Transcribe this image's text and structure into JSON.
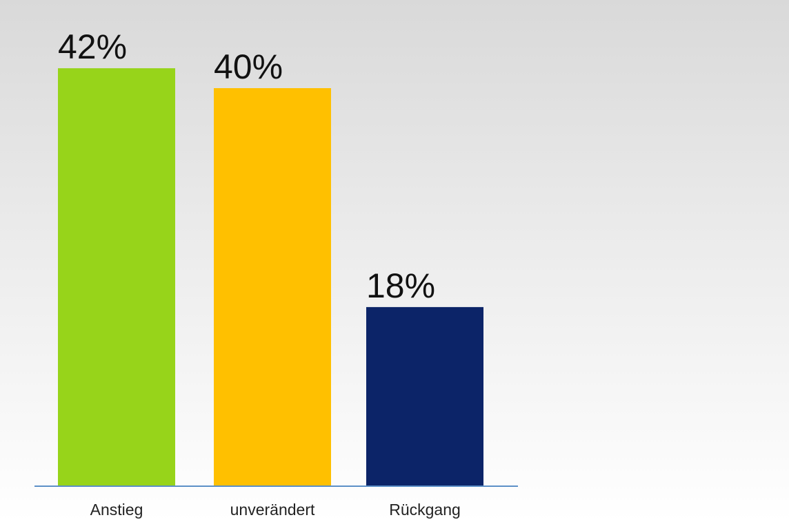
{
  "chart_data": {
    "type": "bar",
    "categories": [
      "Anstieg",
      "unverändert",
      "Rückgang"
    ],
    "values": [
      42,
      40,
      18
    ],
    "value_labels": [
      "42%",
      "40%",
      "18%"
    ],
    "ylim": [
      0,
      50
    ],
    "grid": false,
    "legend": "none",
    "colors": [
      "#97d41a",
      "#ffc000",
      "#0c2468"
    ],
    "baseline_color": "#5b8fc7"
  }
}
